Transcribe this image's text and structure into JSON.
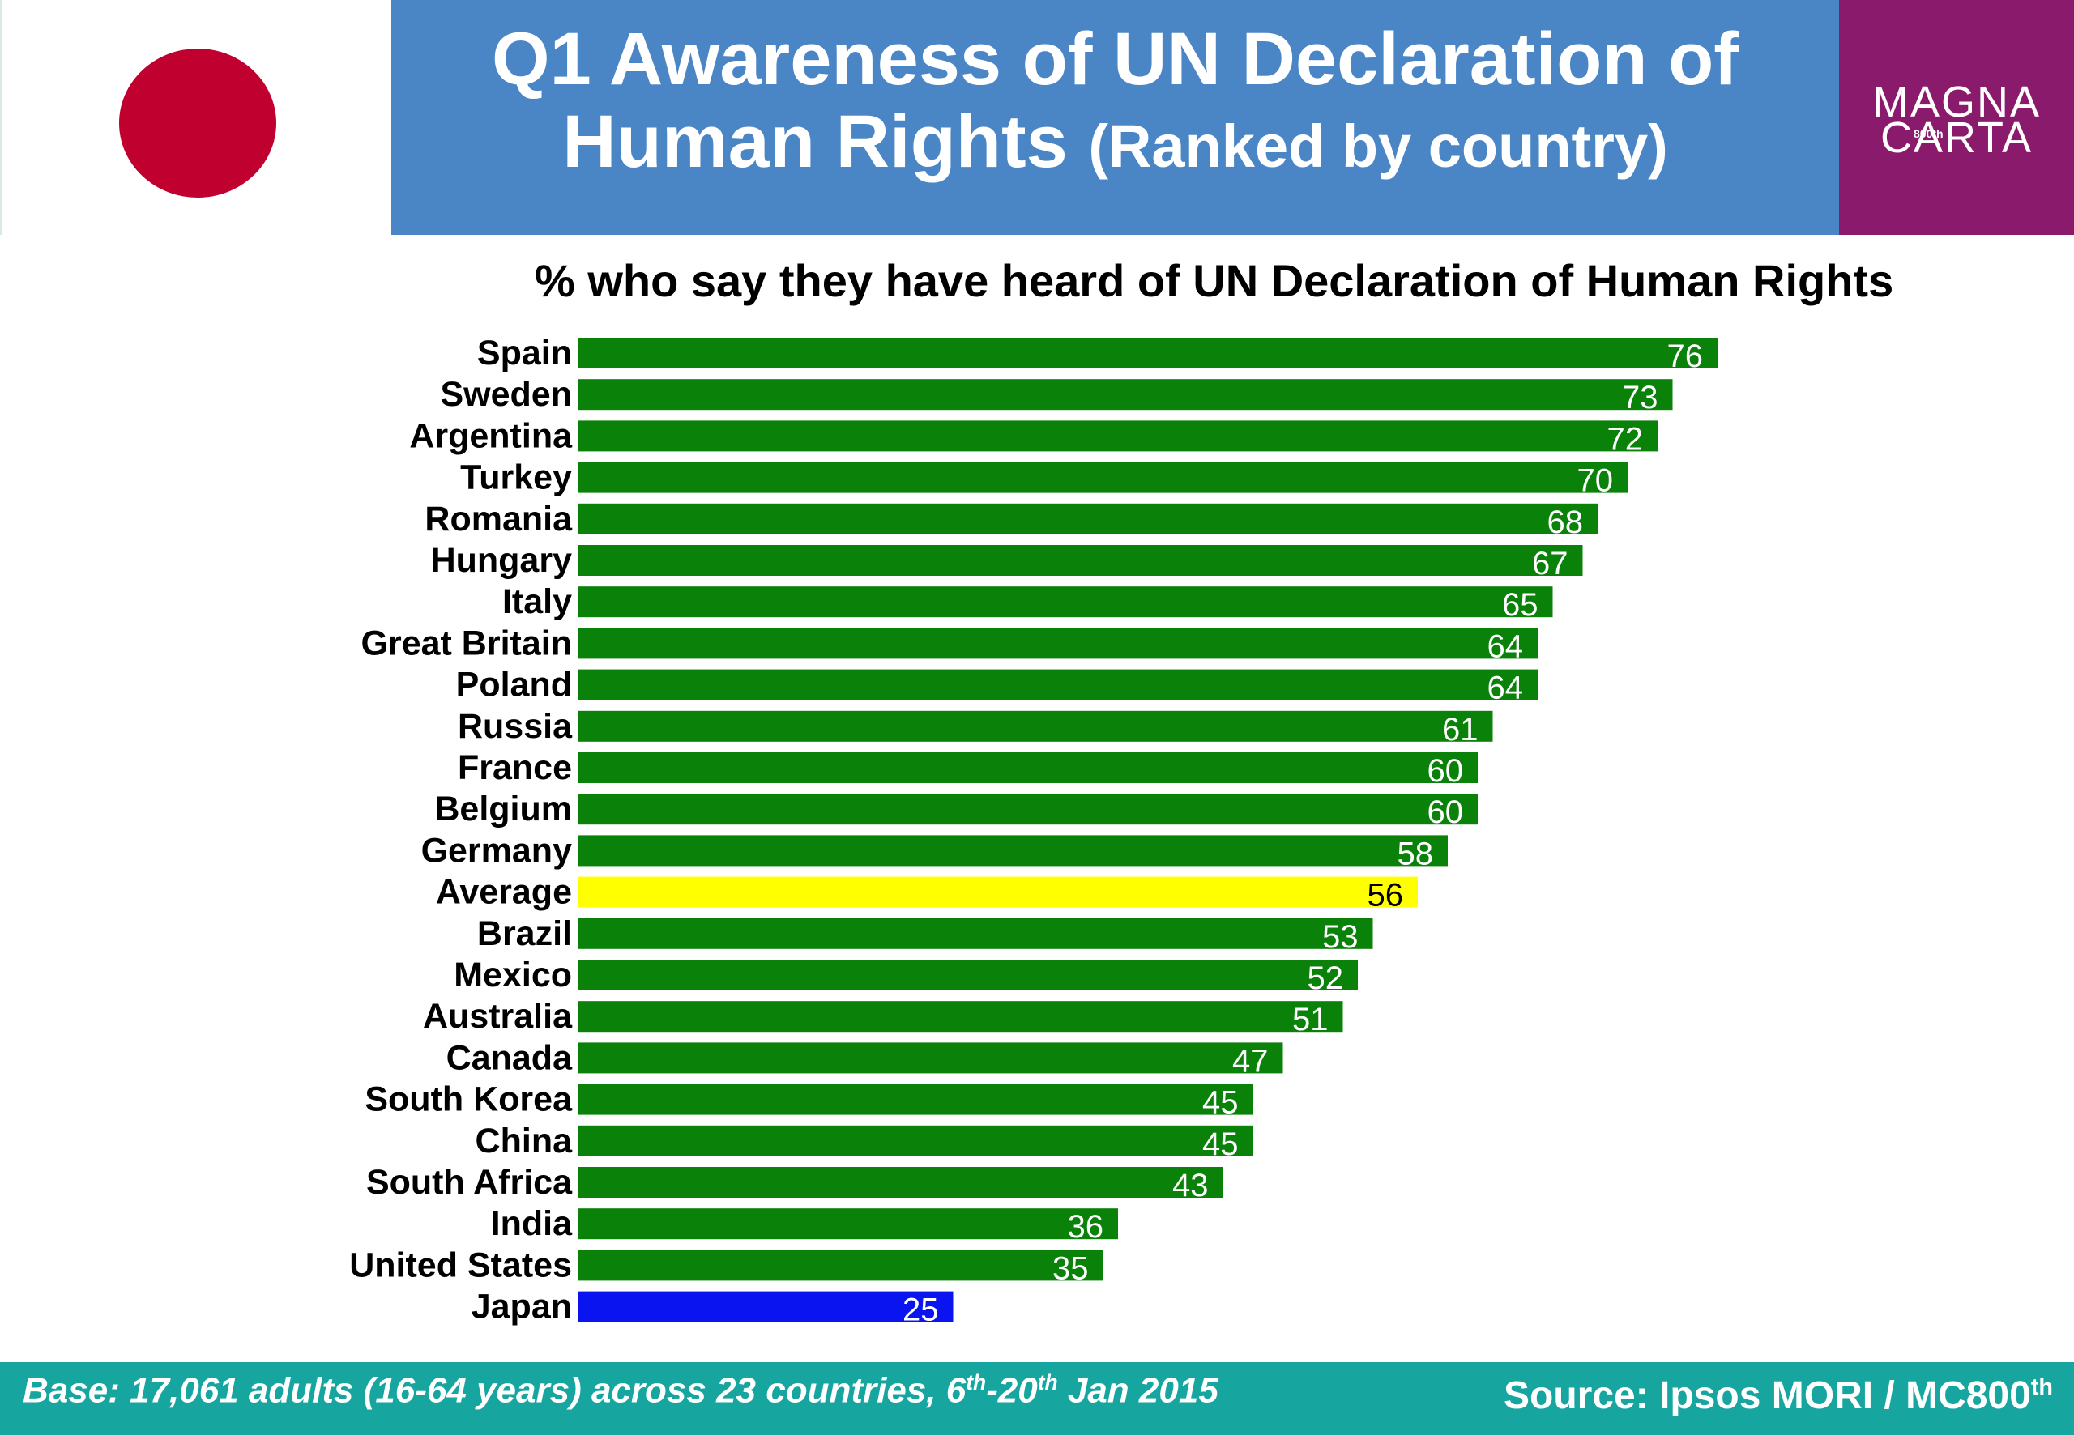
{
  "header": {
    "title_main": "Q1 Awareness of UN Declaration of Human Rights",
    "title_sub": "(Ranked by country)",
    "logo_line1": "MAGNA",
    "logo_line2": "CARTA",
    "logo_badge": "800th"
  },
  "colors": {
    "header_blue": "#4a86c5",
    "logo_purple": "#8a1a6b",
    "flag_red": "#c0002f",
    "bar_default": "#0a820a",
    "bar_average": "#ffff00",
    "bar_highlight": "#0a14f0",
    "footer_teal": "#17a5a0"
  },
  "footer": {
    "base_prefix": "Base: 17,061 adults (16-64 years) across 23 countries, 6",
    "base_sup1": "th",
    "base_mid": "-20",
    "base_sup2": "th",
    "base_suffix": " Jan 2015",
    "source_text": "Source: Ipsos MORI / MC800",
    "source_sup": "th"
  },
  "chart_data": {
    "type": "bar",
    "orientation": "horizontal",
    "title": "% who say they have heard of UN Declaration of Human Rights",
    "categories": [
      "Spain",
      "Sweden",
      "Argentina",
      "Turkey",
      "Romania",
      "Hungary",
      "Italy",
      "Great Britain",
      "Poland",
      "Russia",
      "France",
      "Belgium",
      "Germany",
      "Average",
      "Brazil",
      "Mexico",
      "Australia",
      "Canada",
      "South Korea",
      "China",
      "South Africa",
      "India",
      "United States",
      "Japan"
    ],
    "values": [
      76,
      73,
      72,
      70,
      68,
      67,
      65,
      64,
      64,
      61,
      60,
      60,
      58,
      56,
      53,
      52,
      51,
      47,
      45,
      45,
      43,
      36,
      35,
      25
    ],
    "highlight": {
      "Average": "bar_average",
      "Japan": "bar_highlight"
    },
    "xlim": [
      0,
      100
    ],
    "data_labels": true,
    "grid": false,
    "legend": false
  }
}
